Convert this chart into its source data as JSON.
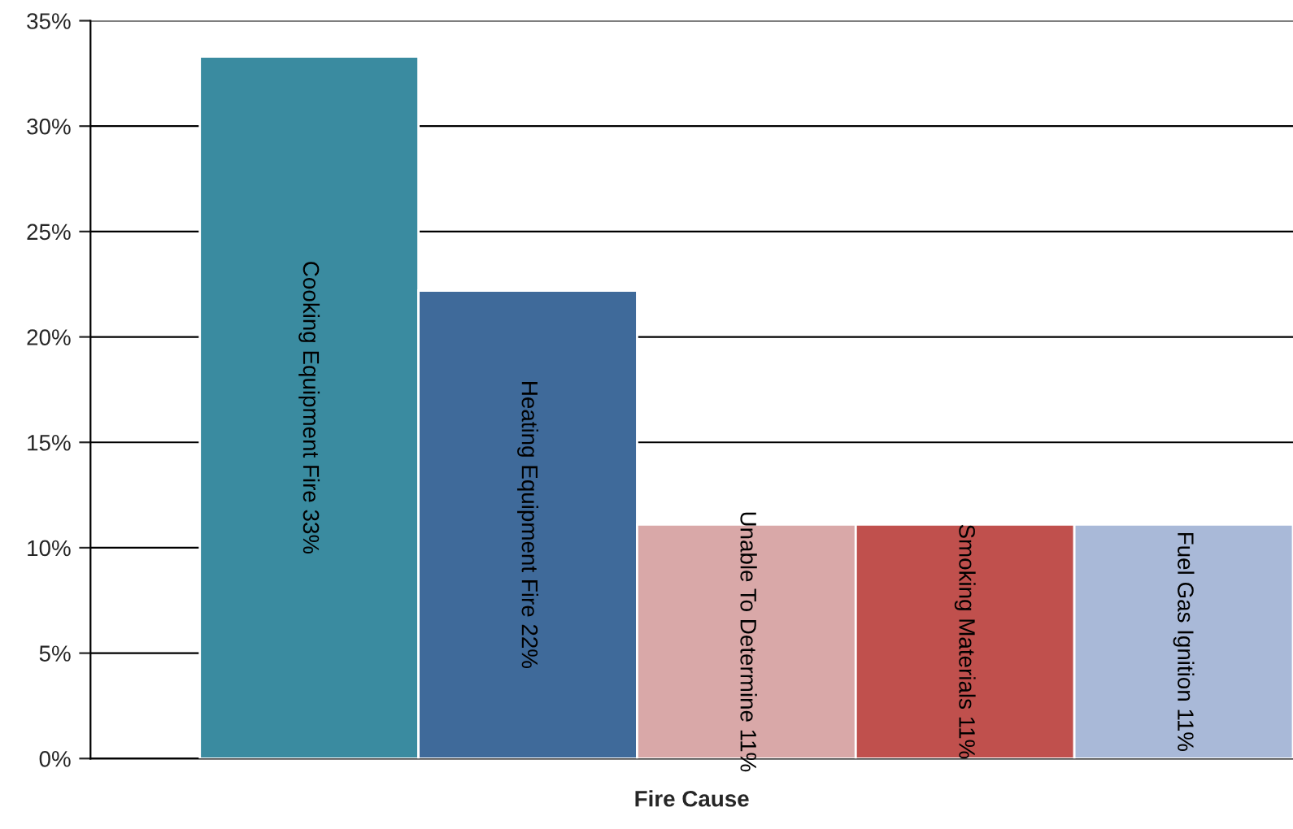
{
  "chart_data": {
    "type": "bar",
    "xlabel": "Fire Cause",
    "categories": [
      "Cooking Equipment Fire",
      "Heating Equipment Fire",
      "Unable To Determine",
      "Smoking Materials",
      "Fuel Gas Ignition"
    ],
    "values": [
      33.3,
      22.2,
      11.1,
      11.1,
      11.1
    ],
    "value_labels": [
      "33%",
      "22%",
      "11%",
      "11%",
      "11%"
    ],
    "colors": [
      "#3a8ba0",
      "#3f6a9a",
      "#d9a8a8",
      "#c0504d",
      "#a9b9d8"
    ],
    "ylim": [
      0,
      35
    ],
    "yticks": [
      {
        "value": 0,
        "label": "0%"
      },
      {
        "value": 5,
        "label": "5%"
      },
      {
        "value": 10,
        "label": "10%"
      },
      {
        "value": 15,
        "label": "15%"
      },
      {
        "value": 20,
        "label": "20%"
      },
      {
        "value": 25,
        "label": "25%"
      },
      {
        "value": 30,
        "label": "30%"
      },
      {
        "value": 35,
        "label": "35%"
      }
    ],
    "grid": "y"
  }
}
